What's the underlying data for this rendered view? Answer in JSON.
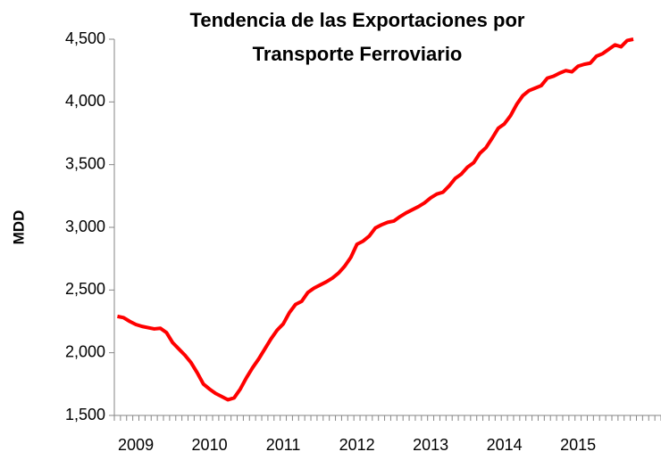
{
  "chart_data": {
    "type": "line",
    "title": [
      "Tendencia de las Exportaciones por",
      "Transporte Ferroviario"
    ],
    "y_label": "MDD",
    "categories": [
      null,
      null,
      null,
      "2009",
      null,
      null,
      null,
      null,
      null,
      null,
      null,
      null,
      null,
      null,
      null,
      "2010",
      null,
      null,
      null,
      null,
      null,
      null,
      null,
      null,
      null,
      null,
      null,
      "2011",
      null,
      null,
      null,
      null,
      null,
      null,
      null,
      null,
      null,
      null,
      null,
      "2012",
      null,
      null,
      null,
      null,
      null,
      null,
      null,
      null,
      null,
      null,
      null,
      "2013",
      null,
      null,
      null,
      null,
      null,
      null,
      null,
      null,
      null,
      null,
      null,
      "2014",
      null,
      null,
      null,
      null,
      null,
      null,
      null,
      null,
      null,
      null,
      null,
      "2015",
      null,
      null,
      null,
      null,
      null,
      null,
      null,
      null,
      null,
      null,
      null,
      null,
      null
    ],
    "series": [
      {
        "name": "Exportaciones",
        "color": "#ff0000",
        "values": [
          2290,
          2280,
          2250,
          2225,
          2210,
          2200,
          2190,
          2195,
          2160,
          2080,
          2030,
          1980,
          1920,
          1840,
          1750,
          1710,
          1675,
          1650,
          1625,
          1640,
          1710,
          1800,
          1880,
          1950,
          2030,
          2110,
          2180,
          2230,
          2320,
          2385,
          2410,
          2480,
          2515,
          2540,
          2565,
          2595,
          2635,
          2690,
          2760,
          2865,
          2890,
          2930,
          2995,
          3020,
          3040,
          3050,
          3085,
          3115,
          3140,
          3165,
          3195,
          3235,
          3265,
          3280,
          3330,
          3390,
          3425,
          3480,
          3515,
          3590,
          3635,
          3710,
          3790,
          3825,
          3890,
          3980,
          4050,
          4090,
          4110,
          4130,
          4190,
          4205,
          4230,
          4250,
          4240,
          4285,
          4300,
          4310,
          4365,
          4385,
          4420,
          4455,
          4440,
          4490,
          4500,
          null,
          null,
          null,
          null
        ]
      }
    ],
    "ylim": [
      1500,
      4500
    ],
    "yticks": [
      {
        "value": 1500,
        "label": "1,500"
      },
      {
        "value": 2000,
        "label": "2,000"
      },
      {
        "value": 2500,
        "label": "2,500"
      },
      {
        "value": 3000,
        "label": "3,000"
      },
      {
        "value": 3500,
        "label": "3,500"
      },
      {
        "value": 4000,
        "label": "4,000"
      },
      {
        "value": 4500,
        "label": "4,500"
      }
    ],
    "grid": false
  }
}
